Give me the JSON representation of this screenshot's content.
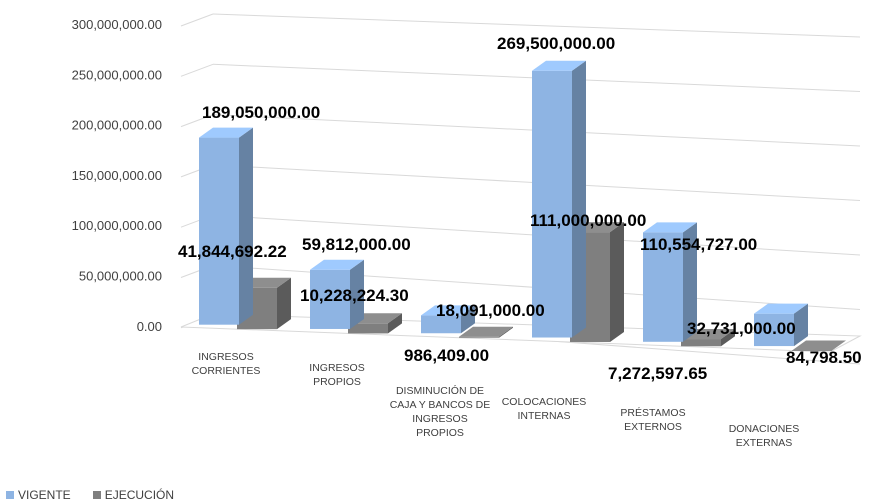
{
  "chart_data": {
    "type": "bar",
    "categories": [
      "INGRESOS CORRIENTES",
      "INGRESOS PROPIOS",
      "DISMINUCIÓN DE CAJA Y BANCOS DE INGRESOS PROPIOS",
      "COLOCACIONES INTERNAS",
      "PRÉSTAMOS EXTERNOS",
      "DONACIONES EXTERNAS"
    ],
    "category_lines": [
      [
        "INGRESOS",
        "CORRIENTES"
      ],
      [
        "INGRESOS",
        "PROPIOS"
      ],
      [
        "DISMINUCIÓN DE",
        "CAJA Y BANCOS DE",
        "INGRESOS",
        "PROPIOS"
      ],
      [
        "COLOCACIONES",
        "INTERNAS"
      ],
      [
        "PRÉSTAMOS",
        "EXTERNOS"
      ],
      [
        "DONACIONES",
        "EXTERNAS"
      ]
    ],
    "series": [
      {
        "name": "VIGENTE",
        "color": "#8EB4E3",
        "values": [
          189050000.0,
          59812000.0,
          18091000.0,
          269500000.0,
          110554727.0,
          32731000.0
        ],
        "labels": [
          "189,050,000.00",
          "59,812,000.00",
          "18,091,000.00",
          "269,500,000.00",
          "110,554,727.00",
          "32,731,000.00"
        ]
      },
      {
        "name": "EJECUCIÓN",
        "color": "#7F7F7F",
        "values": [
          41844692.22,
          10228224.3,
          986409.0,
          111000000.0,
          7272597.65,
          84798.5
        ],
        "labels": [
          "41,844,692.22",
          "10,228,224.30",
          "986,409.00",
          "111,000,000.00",
          "7,272,597.65",
          "84,798.50"
        ]
      }
    ],
    "y_ticks": [
      "300,000,000.00",
      "250,000,000.00",
      "200,000,000.00",
      "150,000,000.00",
      "100,000,000.00",
      "50,000,000.00",
      "0.00"
    ],
    "ylim": [
      0,
      300000000
    ],
    "grid": true,
    "style": "3d-clustered-column",
    "legend_position": "bottom-left",
    "title": "",
    "xlabel": "",
    "ylabel": ""
  }
}
